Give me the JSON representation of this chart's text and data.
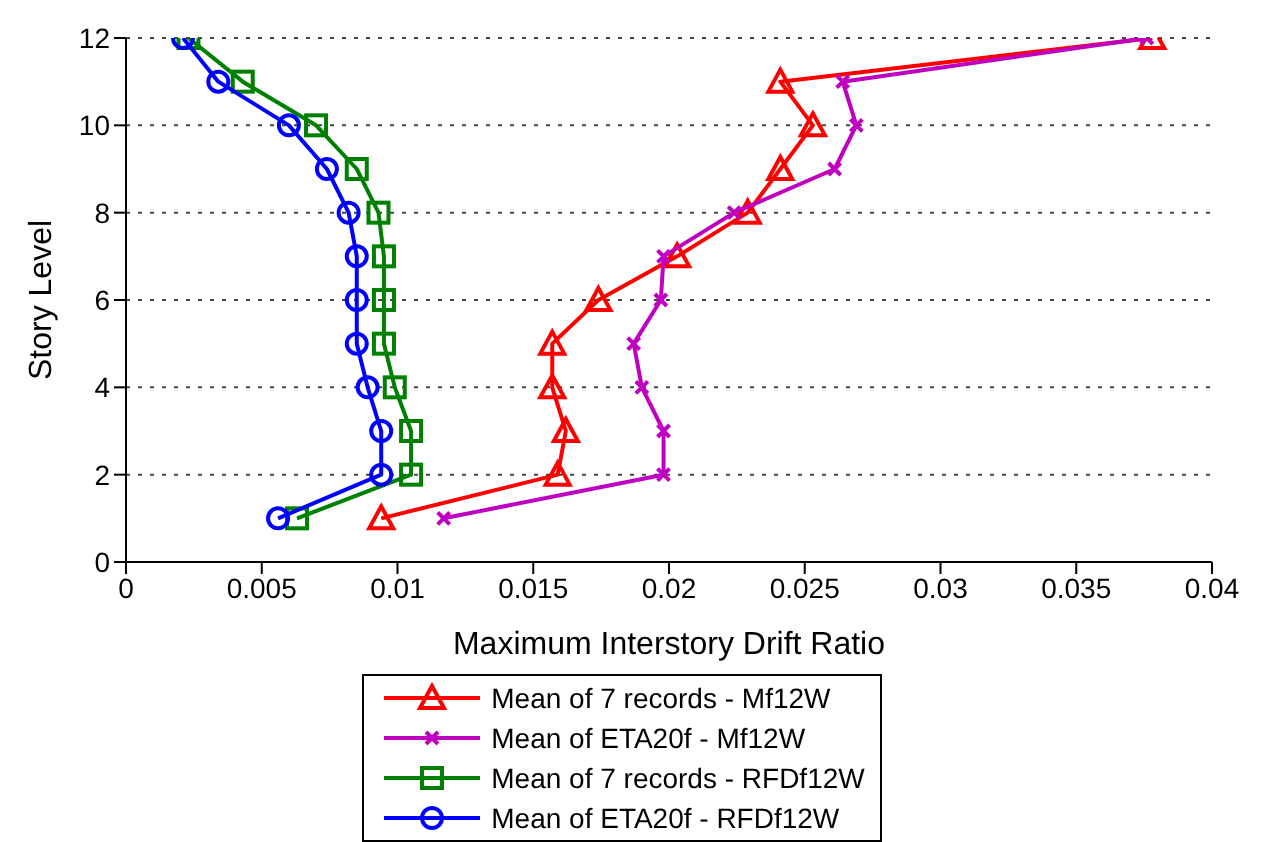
{
  "chart_data": {
    "type": "line",
    "xlabel": "Maximum Interstory Drift Ratio",
    "ylabel": "Story Level",
    "series": [
      {
        "name": "Mean of 7 records - Mf12W",
        "color": "#ff0000",
        "marker": "triangle",
        "x": [
          0.0094,
          0.0159,
          0.0162,
          0.0157,
          0.0157,
          0.0174,
          0.0203,
          0.0229,
          0.0241,
          0.0253,
          0.0241,
          0.0378
        ],
        "values": [
          1,
          2,
          3,
          4,
          5,
          6,
          7,
          8,
          9,
          10,
          11,
          12
        ]
      },
      {
        "name": "Mean of ETA20f - Mf12W",
        "color": "#c000c0",
        "marker": "cross",
        "x": [
          0.0117,
          0.0198,
          0.0198,
          0.019,
          0.0187,
          0.0197,
          0.0198,
          0.0224,
          0.0261,
          0.0269,
          0.0264,
          0.0376
        ],
        "values": [
          1,
          2,
          3,
          4,
          5,
          6,
          7,
          8,
          9,
          10,
          11,
          12
        ]
      },
      {
        "name": "Mean of 7 records - RFDf12W",
        "color": "#008000",
        "marker": "square",
        "x": [
          0.0063,
          0.0105,
          0.0105,
          0.0099,
          0.0095,
          0.0095,
          0.0095,
          0.0093,
          0.0085,
          0.007,
          0.0043,
          0.0023
        ],
        "values": [
          1,
          2,
          3,
          4,
          5,
          6,
          7,
          8,
          9,
          10,
          11,
          12
        ]
      },
      {
        "name": "Mean of ETA20f - RFDf12W",
        "color": "#0000ff",
        "marker": "circle",
        "x": [
          0.0056,
          0.0094,
          0.0094,
          0.0089,
          0.0085,
          0.0085,
          0.0085,
          0.0082,
          0.0074,
          0.006,
          0.0034,
          0.0021
        ],
        "values": [
          1,
          2,
          3,
          4,
          5,
          6,
          7,
          8,
          9,
          10,
          11,
          12
        ]
      }
    ],
    "xlim": [
      0,
      0.04
    ],
    "xticks": [
      0,
      0.005,
      0.01,
      0.015,
      0.02,
      0.025,
      0.03,
      0.035,
      0.04
    ],
    "ylim": [
      0,
      12
    ],
    "yticks": [
      0,
      2,
      4,
      6,
      8,
      10,
      12
    ],
    "grid": "y",
    "legend": "bottom",
    "line_style": "solid"
  }
}
